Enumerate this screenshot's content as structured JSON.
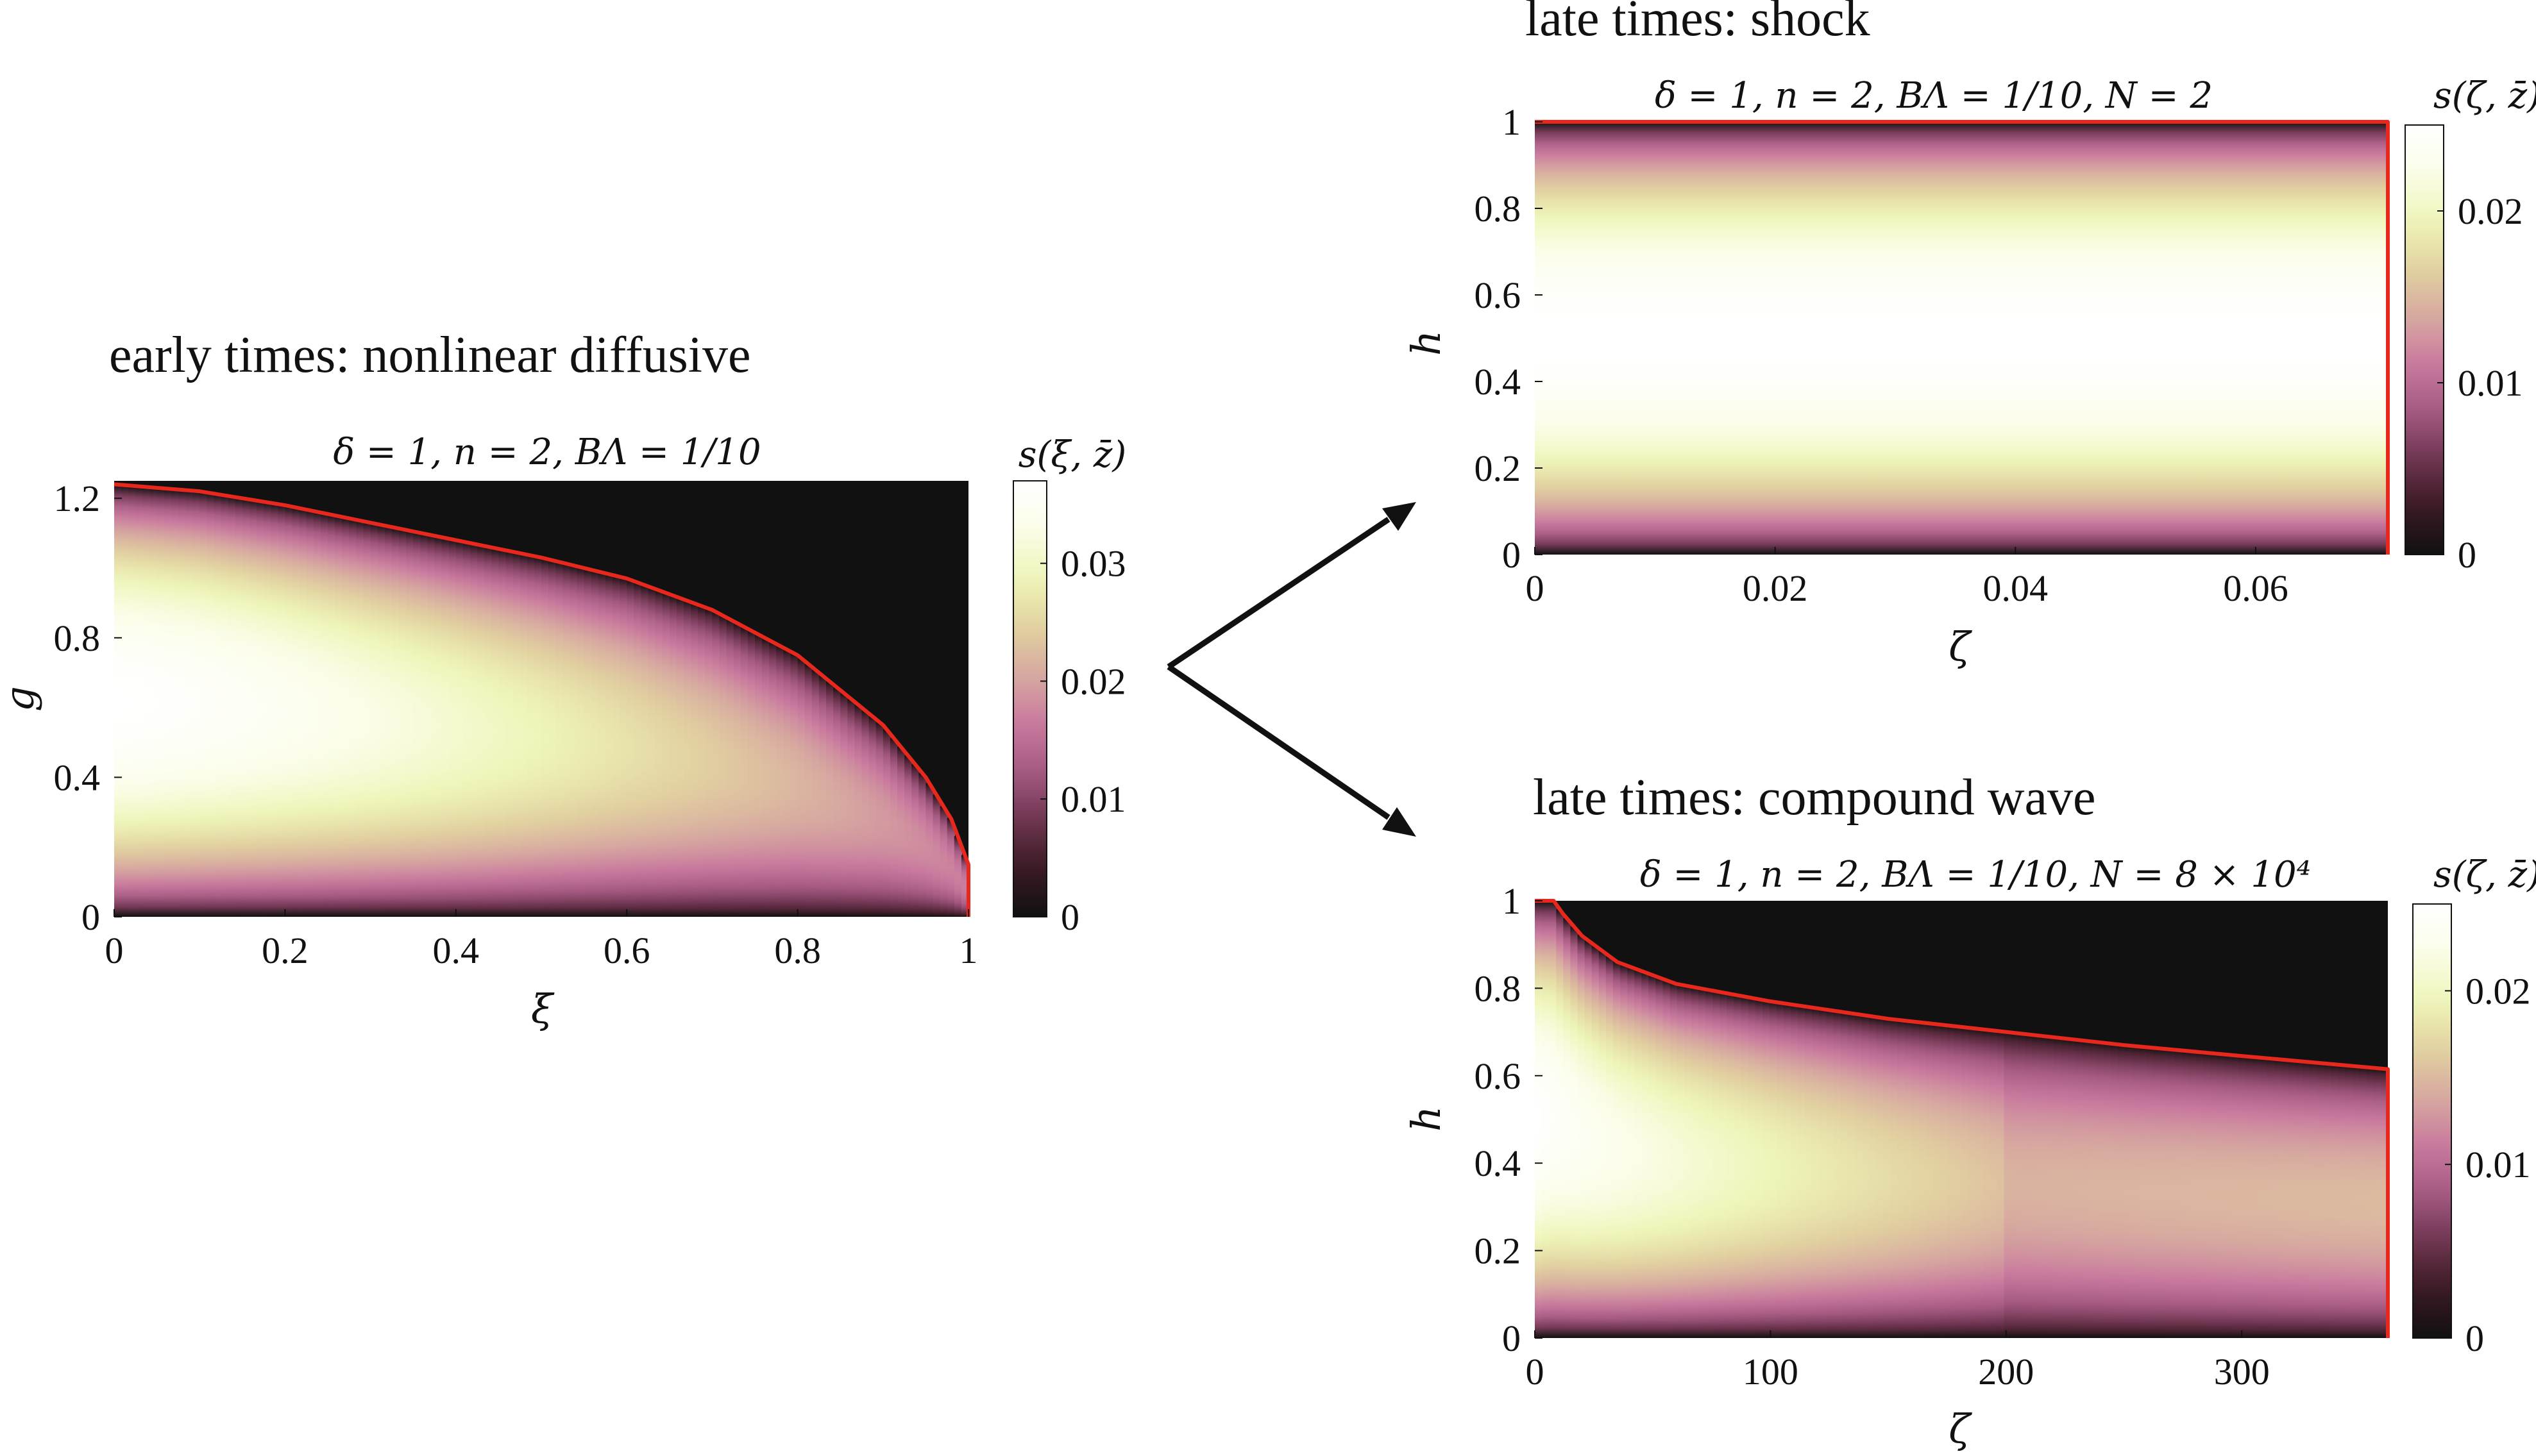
{
  "chart_data": [
    {
      "type": "heatmap",
      "heading": "early times: nonlinear diffusive",
      "title": "δ = 1, n = 2, BΛ = 1/10",
      "xlabel": "ξ",
      "ylabel": "g",
      "colorbar_label": "s(ξ, z̄)",
      "xlim": [
        0,
        1
      ],
      "ylim": [
        0,
        1.25
      ],
      "clim": [
        0,
        0.037
      ],
      "xticks": [
        "0",
        "0.2",
        "0.4",
        "0.6",
        "0.8",
        "1"
      ],
      "xtick_values": [
        0,
        0.2,
        0.4,
        0.6,
        0.8,
        1
      ],
      "yticks": [
        "0",
        "0.4",
        "0.8",
        "1.2"
      ],
      "ytick_values": [
        0,
        0.4,
        0.8,
        1.2
      ],
      "cticks": [
        "0",
        "0.01",
        "0.02",
        "0.03"
      ],
      "ctick_values": [
        0,
        0.01,
        0.02,
        0.03
      ],
      "front_curve": {
        "color": "#e8281c",
        "x": [
          0,
          0.1,
          0.2,
          0.3,
          0.4,
          0.5,
          0.6,
          0.7,
          0.8,
          0.9,
          0.95,
          0.98,
          1,
          1
        ],
        "y": [
          1.24,
          1.22,
          1.18,
          1.13,
          1.08,
          1.03,
          0.97,
          0.88,
          0.75,
          0.55,
          0.4,
          0.28,
          0.15,
          0
        ]
      },
      "peak_g": 0.6,
      "peak_value": 0.037
    },
    {
      "type": "heatmap",
      "heading": "late times: shock",
      "title": "δ = 1, n = 2, BΛ = 1/10, N = 2",
      "xlabel": "ζ",
      "ylabel": "h",
      "colorbar_label": "s(ζ, z̄)",
      "xlim": [
        0,
        0.071
      ],
      "ylim": [
        0,
        1
      ],
      "clim": [
        0,
        0.025
      ],
      "xticks": [
        "0",
        "0.02",
        "0.04",
        "0.06"
      ],
      "xtick_values": [
        0,
        0.02,
        0.04,
        0.06
      ],
      "yticks": [
        "0",
        "0.2",
        "0.4",
        "0.6",
        "0.8",
        "1"
      ],
      "ytick_values": [
        0,
        0.2,
        0.4,
        0.6,
        0.8,
        1
      ],
      "cticks": [
        "0",
        "0.01",
        "0.02"
      ],
      "ctick_values": [
        0,
        0.01,
        0.02
      ],
      "front_curve": {
        "color": "#e8281c",
        "x": [
          0,
          0.071,
          0.071
        ],
        "y": [
          1,
          1,
          0
        ]
      },
      "peak_h": 0.45,
      "peak_value": 0.025
    },
    {
      "type": "heatmap",
      "heading": "late times: compound wave",
      "title": "δ = 1, n = 2, BΛ = 1/10, N = 8 × 10⁴",
      "xlabel": "ζ",
      "ylabel": "h",
      "colorbar_label": "s(ζ, z̄)",
      "xlim": [
        0,
        362
      ],
      "ylim": [
        0,
        1
      ],
      "clim": [
        0,
        0.025
      ],
      "xticks": [
        "0",
        "100",
        "200",
        "300"
      ],
      "xtick_values": [
        0,
        100,
        200,
        300
      ],
      "yticks": [
        "0",
        "0.2",
        "0.4",
        "0.6",
        "0.8",
        "1"
      ],
      "ytick_values": [
        0,
        0.2,
        0.4,
        0.6,
        0.8,
        1
      ],
      "cticks": [
        "0",
        "0.01",
        "0.02"
      ],
      "ctick_values": [
        0,
        0.01,
        0.02
      ],
      "front_curve": {
        "color": "#e8281c",
        "x": [
          0,
          8,
          12,
          20,
          35,
          60,
          100,
          150,
          200,
          250,
          300,
          362,
          362
        ],
        "y": [
          1,
          1,
          0.97,
          0.92,
          0.86,
          0.81,
          0.77,
          0.73,
          0.7,
          0.67,
          0.645,
          0.615,
          0
        ]
      },
      "peak_h": 0.45,
      "peak_value": 0.025
    }
  ],
  "colormap": {
    "stops": [
      "#111111",
      "#3a1a24",
      "#6e3550",
      "#a65a82",
      "#c97a9e",
      "#d7a9a0",
      "#e2d2a0",
      "#eef5b8",
      "#fbfde8",
      "#ffffff"
    ]
  }
}
